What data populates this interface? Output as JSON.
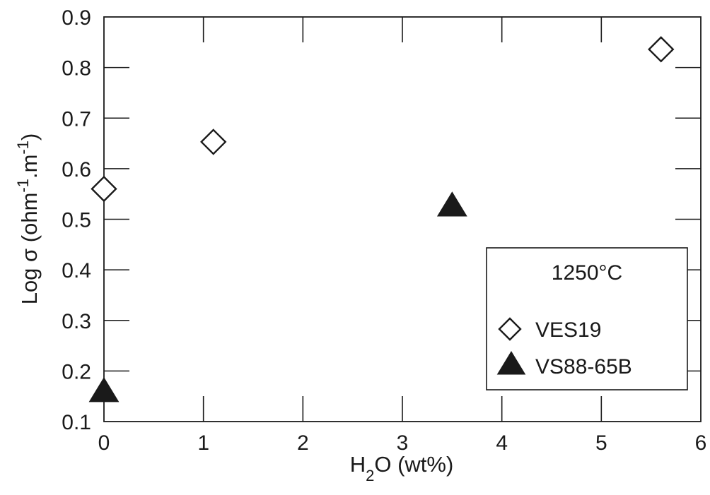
{
  "chart_data": {
    "type": "scatter",
    "xlabel": {
      "pre": "H",
      "sub": "2",
      "post": "O (wt%)"
    },
    "ylabel": {
      "pre": "Log σ (ohm",
      "sup1": "-1",
      "mid": ".m",
      "sup2": "-1",
      "post": ")"
    },
    "xlim": [
      0,
      6
    ],
    "ylim": [
      0.1,
      0.9
    ],
    "x_ticks": [
      0,
      1,
      2,
      3,
      4,
      5,
      6
    ],
    "x_tick_labels": [
      "0",
      "1",
      "2",
      "3",
      "4",
      "5",
      "6"
    ],
    "y_ticks": [
      0.1,
      0.2,
      0.3,
      0.4,
      0.5,
      0.6,
      0.7,
      0.8,
      0.9
    ],
    "y_tick_labels": [
      "0.1",
      "0.2",
      "0.3",
      "0.4",
      "0.5",
      "0.6",
      "0.7",
      "0.8",
      "0.9"
    ],
    "grid": false,
    "legend_title": "1250°C",
    "legend_position": "bottom-right",
    "series": [
      {
        "name": "VES19",
        "marker": "open-diamond",
        "color": "#1a1a1a",
        "points": [
          {
            "x": 0,
            "y": 0.56
          },
          {
            "x": 1.1,
            "y": 0.653
          },
          {
            "x": 5.6,
            "y": 0.836
          }
        ]
      },
      {
        "name": "VS88-65B",
        "marker": "filled-triangle",
        "color": "#1a1a1a",
        "points": [
          {
            "x": 0,
            "y": 0.16
          },
          {
            "x": 3.5,
            "y": 0.527
          }
        ]
      }
    ]
  }
}
